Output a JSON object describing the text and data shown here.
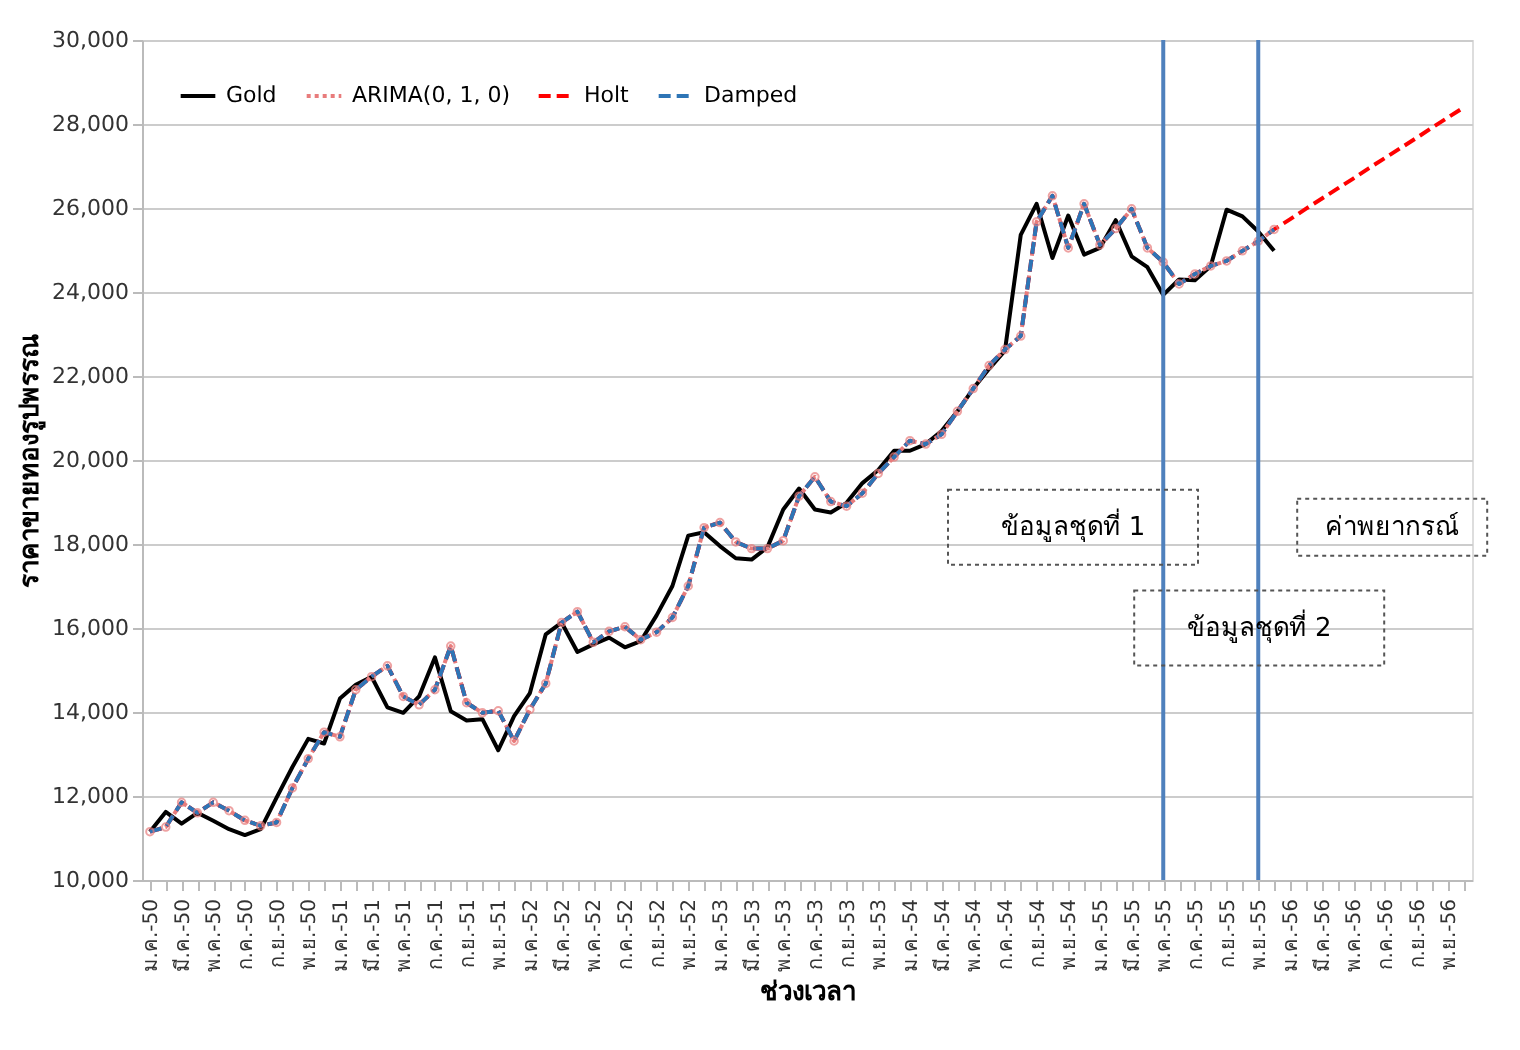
{
  "chart_data": {
    "type": "line",
    "xlabel": "ช่วงเวลา",
    "ylabel": "ราคาขายทองรูปพรรณ",
    "categories": [
      "ม.ค.-50",
      null,
      "มี.ค.-50",
      null,
      "พ.ค.-50",
      null,
      "ก.ค.-50",
      null,
      "ก.ย.-50",
      null,
      "พ.ย.-50",
      null,
      "ม.ค.-51",
      null,
      "มี.ค.-51",
      null,
      "พ.ค.-51",
      null,
      "ก.ค.-51",
      null,
      "ก.ย.-51",
      null,
      "พ.ย.-51",
      null,
      "ม.ค.-52",
      null,
      "มี.ค.-52",
      null,
      "พ.ค.-52",
      null,
      "ก.ค.-52",
      null,
      "ก.ย.-52",
      null,
      "พ.ย.-52",
      null,
      "ม.ค.-53",
      null,
      "มี.ค.-53",
      null,
      "พ.ค.-53",
      null,
      "ก.ค.-53",
      null,
      "ก.ย.-53",
      null,
      "พ.ย.-53",
      null,
      "ม.ค.-54",
      null,
      "มี.ค.-54",
      null,
      "พ.ค.-54",
      null,
      "ก.ค.-54",
      null,
      "ก.ย.-54",
      null,
      "พ.ย.-54",
      null,
      "ม.ค.-55",
      null,
      "มี.ค.-55",
      null,
      "พ.ค.-55",
      null,
      "ก.ค.-55",
      null,
      "ก.ย.-55",
      null,
      "พ.ย.-55",
      null,
      "ม.ค.-56",
      null,
      "มี.ค.-56",
      null,
      "พ.ค.-56",
      null,
      "ก.ค.-56",
      null,
      "ก.ย.-56",
      null,
      "พ.ย.-56",
      null
    ],
    "ylim": [
      10000,
      30000
    ],
    "yticks": [
      {
        "value": 10000,
        "label": "10,000"
      },
      {
        "value": 12000,
        "label": "12,000"
      },
      {
        "value": 14000,
        "label": "14,000"
      },
      {
        "value": 16000,
        "label": "16,000"
      },
      {
        "value": 18000,
        "label": "18,000"
      },
      {
        "value": 20000,
        "label": "20,000"
      },
      {
        "value": 22000,
        "label": "22,000"
      },
      {
        "value": 24000,
        "label": "24,000"
      },
      {
        "value": 26000,
        "label": "26,000"
      },
      {
        "value": 28000,
        "label": "28,000"
      },
      {
        "value": 30000,
        "label": "30,000"
      }
    ],
    "grid": "y",
    "legend": "top left",
    "series": [
      {
        "name": "Gold",
        "color": "#000000",
        "line_style": "solid",
        "values": [
          11150,
          11620,
          11340,
          11600,
          11410,
          11210,
          11070,
          11210,
          11960,
          12690,
          13360,
          13250,
          14320,
          14650,
          14840,
          14110,
          13980,
          14370,
          15300,
          14020,
          13800,
          13830,
          13090,
          13900,
          14450,
          15850,
          16130,
          15430,
          15610,
          15770,
          15540,
          15690,
          16300,
          17000,
          18200,
          18280,
          17950,
          17660,
          17630,
          17920,
          18820,
          19320,
          18820,
          18750,
          18980,
          19450,
          19760,
          20220,
          20220,
          20380,
          20690,
          21160,
          21700,
          22170,
          22600,
          25360,
          26100,
          24810,
          25820,
          24890,
          25050,
          25710,
          24850,
          24590,
          23930,
          24300,
          24280,
          24620,
          25960,
          25800,
          25440,
          24980,
          null,
          null,
          null,
          null,
          null,
          null,
          null,
          null,
          null,
          null,
          null,
          null
        ]
      },
      {
        "name": "ARIMA(0, 1, 0)",
        "color": "#e87c7c",
        "line_style": "dotted",
        "marker": "circle",
        "values": [
          11150,
          11260,
          11850,
          11600,
          11850,
          11650,
          11420,
          11290,
          11370,
          12190,
          12890,
          13520,
          13410,
          14530,
          14840,
          15100,
          14370,
          14170,
          14530,
          15570,
          14220,
          13980,
          14030,
          13310,
          14060,
          14680,
          16130,
          16390,
          15660,
          15920,
          16030,
          15720,
          15900,
          16250,
          17000,
          18390,
          18510,
          18050,
          17890,
          17890,
          18080,
          19140,
          19600,
          19010,
          18900,
          19210,
          19680,
          20070,
          20460,
          20380,
          20610,
          21160,
          21700,
          22250,
          22630,
          22950,
          25670,
          26290,
          25050,
          26100,
          25120,
          25510,
          25980,
          25050,
          24710,
          24190,
          24430,
          24620,
          24740,
          24980,
          25210,
          25490,
          null,
          null,
          null,
          null,
          null,
          null,
          null,
          null,
          null,
          null,
          null,
          null
        ]
      },
      {
        "name": "Holt",
        "color": "#ff0000",
        "line_style": "dashed",
        "values": [
          11150,
          11260,
          11850,
          11600,
          11850,
          11650,
          11420,
          11290,
          11370,
          12190,
          12890,
          13520,
          13410,
          14530,
          14840,
          15100,
          14370,
          14170,
          14530,
          15570,
          14220,
          13980,
          14030,
          13310,
          14060,
          14680,
          16130,
          16390,
          15660,
          15920,
          16030,
          15720,
          15900,
          16250,
          17000,
          18390,
          18510,
          18050,
          17890,
          17890,
          18080,
          19140,
          19600,
          19010,
          18900,
          19210,
          19680,
          20070,
          20460,
          20380,
          20610,
          21160,
          21700,
          22250,
          22630,
          22950,
          25670,
          26290,
          25050,
          26100,
          25120,
          25510,
          25980,
          25050,
          24710,
          24190,
          24430,
          24620,
          24740,
          24980,
          25210,
          25490,
          25730,
          25980,
          26220,
          26460,
          26700,
          26950,
          27190,
          27430,
          27670,
          27920,
          28160,
          28400
        ]
      },
      {
        "name": "Damped",
        "color": "#2e75b6",
        "line_style": "dashed",
        "values": [
          11150,
          11260,
          11850,
          11600,
          11850,
          11650,
          11420,
          11290,
          11370,
          12190,
          12890,
          13520,
          13410,
          14530,
          14840,
          15100,
          14370,
          14170,
          14530,
          15570,
          14220,
          13980,
          14030,
          13310,
          14060,
          14680,
          16130,
          16390,
          15660,
          15920,
          16030,
          15720,
          15900,
          16250,
          17000,
          18390,
          18510,
          18050,
          17890,
          17890,
          18080,
          19140,
          19600,
          19010,
          18900,
          19210,
          19680,
          20070,
          20460,
          20380,
          20610,
          21160,
          21700,
          22250,
          22630,
          22950,
          25670,
          26290,
          25050,
          26100,
          25120,
          25510,
          25980,
          25050,
          24710,
          24190,
          24430,
          24620,
          24740,
          24980,
          25210,
          25490,
          null,
          null,
          null,
          null,
          null,
          null,
          null,
          null,
          null,
          null,
          null,
          null
        ]
      }
    ],
    "ref_lines": [
      {
        "axis": "x",
        "value": "พ.ค.-55",
        "color": "#4f81bd"
      },
      {
        "axis": "x",
        "value": "พ.ย.-55",
        "color": "#4f81bd"
      }
    ],
    "annotations": [
      "ข้อมูลชุดที่ 1",
      "ข้อมูลชุดที่ 2",
      "ค่าพยากรณ์"
    ]
  }
}
